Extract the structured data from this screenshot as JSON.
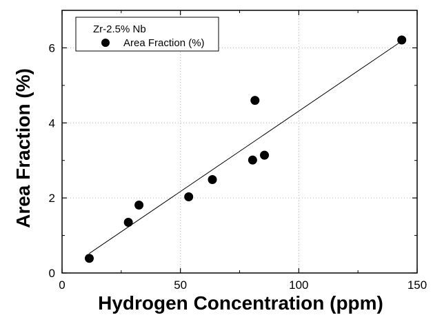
{
  "chart_data": {
    "type": "scatter",
    "xlabel": "Hydrogen Concentration (ppm)",
    "ylabel": "Area Fraction (%)",
    "xlim": [
      0,
      150
    ],
    "ylim": [
      0,
      7
    ],
    "xticks": [
      0,
      50,
      100,
      150
    ],
    "yticks": [
      0,
      2,
      4,
      6
    ],
    "grid": true,
    "legend": {
      "placement": "top-left",
      "title": "Zr-2.5% Nb",
      "entries": [
        "Area Fraction (%)"
      ]
    },
    "series": [
      {
        "name": "Area Fraction (%)",
        "marker": "filled-circle",
        "color": "#000000",
        "points": [
          {
            "x": 11.5,
            "y": 0.39
          },
          {
            "x": 28.0,
            "y": 1.35
          },
          {
            "x": 32.5,
            "y": 1.81
          },
          {
            "x": 53.5,
            "y": 2.03
          },
          {
            "x": 63.5,
            "y": 2.49
          },
          {
            "x": 80.5,
            "y": 3.01
          },
          {
            "x": 81.5,
            "y": 4.6
          },
          {
            "x": 85.5,
            "y": 3.14
          },
          {
            "x": 143.5,
            "y": 6.21
          }
        ]
      }
    ],
    "fit_line": {
      "x": [
        11.5,
        143.5
      ],
      "y": [
        0.52,
        6.18
      ]
    }
  }
}
